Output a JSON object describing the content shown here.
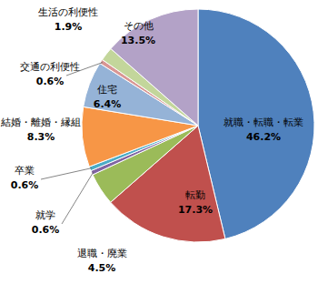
{
  "chart_data": {
    "type": "pie",
    "categories": [
      "就職・転職・転業",
      "転勤",
      "退職・廃業",
      "就学",
      "卒業",
      "結婚・離婚・縁組",
      "住宅",
      "交通の利便性",
      "生活の利便性",
      "その他"
    ],
    "values": [
      46.2,
      17.3,
      4.5,
      0.6,
      0.6,
      8.3,
      6.4,
      0.6,
      1.9,
      13.5
    ],
    "value_labels": [
      "46.2%",
      "17.3%",
      "4.5%",
      "0.6%",
      "0.6%",
      "8.3%",
      "6.4%",
      "0.6%",
      "1.9%",
      "13.5%"
    ],
    "colors": [
      "#4f81bd",
      "#c0504d",
      "#9bbb59",
      "#8064a2",
      "#4bacc6",
      "#f79646",
      "#95b3d7",
      "#d99694",
      "#c3d69b",
      "#b3a2c7"
    ],
    "data_labels": true
  }
}
